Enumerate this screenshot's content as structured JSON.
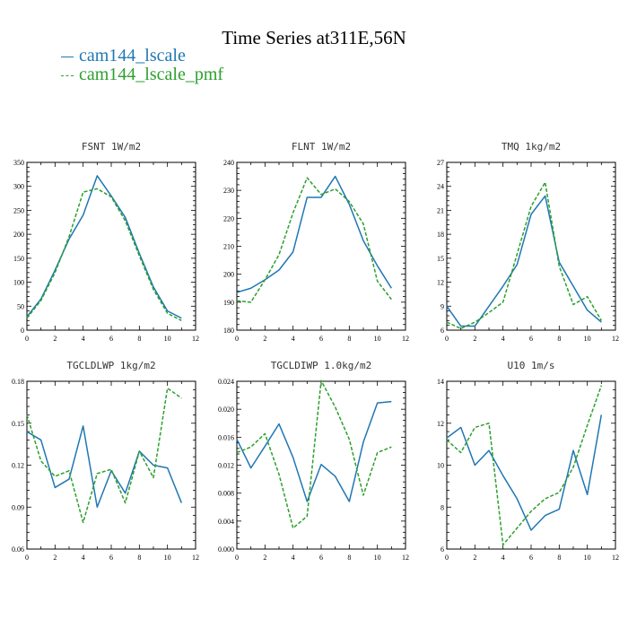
{
  "title": "Time Series at311E,56N",
  "legend": [
    {
      "name": "cam144_lscale",
      "color": "#1f77b4",
      "style": "solid"
    },
    {
      "name": "cam144_lscale_pmf",
      "color": "#2ca02c",
      "style": "dashed"
    }
  ],
  "chart_data": [
    {
      "type": "line",
      "title": "FSNT  1W/m2",
      "x": [
        0,
        1,
        2,
        3,
        4,
        5,
        6,
        7,
        8,
        9,
        10,
        11
      ],
      "xlim": [
        0,
        12
      ],
      "xticks": [
        0,
        2,
        4,
        6,
        8,
        10,
        12
      ],
      "ylim": [
        0,
        350
      ],
      "yticks": [
        0,
        50,
        100,
        150,
        200,
        250,
        300,
        350
      ],
      "ytick_labels": [
        "0",
        "50",
        "100",
        "150",
        "200",
        "250",
        "300",
        "350"
      ],
      "series": [
        {
          "name": "cam144_lscale",
          "values": [
            28,
            65,
            125,
            190,
            240,
            322,
            280,
            235,
            160,
            90,
            40,
            25
          ]
        },
        {
          "name": "cam144_lscale_pmf",
          "values": [
            25,
            62,
            120,
            195,
            288,
            295,
            278,
            228,
            155,
            85,
            35,
            20
          ]
        }
      ]
    },
    {
      "type": "line",
      "title": "FLNT  1W/m2",
      "x": [
        0,
        1,
        2,
        3,
        4,
        5,
        6,
        7,
        8,
        9,
        10,
        11
      ],
      "xlim": [
        0,
        12
      ],
      "xticks": [
        0,
        2,
        4,
        6,
        8,
        10,
        12
      ],
      "ylim": [
        180,
        240
      ],
      "yticks": [
        180,
        190,
        200,
        210,
        220,
        230,
        240
      ],
      "ytick_labels": [
        "180",
        "190",
        "200",
        "210",
        "220",
        "230",
        "240"
      ],
      "series": [
        {
          "name": "cam144_lscale",
          "values": [
            193.5,
            195,
            198,
            201.5,
            208,
            227.5,
            227.5,
            235,
            225,
            212,
            203,
            195
          ]
        },
        {
          "name": "cam144_lscale_pmf",
          "values": [
            190.5,
            190,
            198,
            207,
            222,
            234.5,
            228.5,
            230.5,
            226,
            218,
            197.5,
            191
          ]
        }
      ]
    },
    {
      "type": "line",
      "title": "TMQ  1kg/m2",
      "x": [
        0,
        1,
        2,
        3,
        4,
        5,
        6,
        7,
        8,
        9,
        10,
        11
      ],
      "xlim": [
        0,
        12
      ],
      "xticks": [
        0,
        2,
        4,
        6,
        8,
        10,
        12
      ],
      "ylim": [
        6,
        27
      ],
      "yticks": [
        6,
        9,
        12,
        15,
        18,
        21,
        24,
        27
      ],
      "ytick_labels": [
        "6",
        "9",
        "12",
        "15",
        "18",
        "21",
        "24",
        "27"
      ],
      "series": [
        {
          "name": "cam144_lscale",
          "values": [
            9,
            6.5,
            6.5,
            9,
            11.5,
            14.2,
            20.5,
            22.8,
            14.5,
            11.5,
            8.5,
            7
          ]
        },
        {
          "name": "cam144_lscale_pmf",
          "values": [
            7,
            6.2,
            7,
            8.2,
            9.5,
            15.5,
            21.5,
            24.5,
            14,
            9.2,
            10.2,
            7.2
          ]
        }
      ]
    },
    {
      "type": "line",
      "title": "TGCLDLWP  1kg/m2",
      "x": [
        0,
        1,
        2,
        3,
        4,
        5,
        6,
        7,
        8,
        9,
        10,
        11
      ],
      "xlim": [
        0,
        12
      ],
      "xticks": [
        0,
        2,
        4,
        6,
        8,
        10,
        12
      ],
      "ylim": [
        0.06,
        0.18
      ],
      "yticks": [
        0.06,
        0.09,
        0.12,
        0.15,
        0.18
      ],
      "ytick_labels": [
        "0.06",
        "0.09",
        "0.12",
        "0.15",
        "0.18"
      ],
      "series": [
        {
          "name": "cam144_lscale",
          "values": [
            0.144,
            0.138,
            0.104,
            0.11,
            0.148,
            0.09,
            0.116,
            0.1,
            0.13,
            0.12,
            0.118,
            0.093
          ]
        },
        {
          "name": "cam144_lscale_pmf",
          "values": [
            0.156,
            0.123,
            0.112,
            0.116,
            0.079,
            0.114,
            0.117,
            0.093,
            0.13,
            0.111,
            0.175,
            0.168
          ]
        }
      ]
    },
    {
      "type": "line",
      "title": "TGCLDIWP  1.0kg/m2",
      "x": [
        0,
        1,
        2,
        3,
        4,
        5,
        6,
        7,
        8,
        9,
        10,
        11
      ],
      "xlim": [
        0,
        12
      ],
      "xticks": [
        0,
        2,
        4,
        6,
        8,
        10,
        12
      ],
      "ylim": [
        0,
        0.024
      ],
      "yticks": [
        0,
        0.004,
        0.008,
        0.012,
        0.016,
        0.02,
        0.024
      ],
      "ytick_labels": [
        "0.000",
        "0.004",
        "0.008",
        "0.012",
        "0.016",
        "0.020",
        "0.024"
      ],
      "series": [
        {
          "name": "cam144_lscale",
          "values": [
            0.0157,
            0.0116,
            0.0147,
            0.0179,
            0.0131,
            0.0068,
            0.0121,
            0.0104,
            0.0068,
            0.0153,
            0.0209,
            0.0211
          ]
        },
        {
          "name": "cam144_lscale_pmf",
          "values": [
            0.0138,
            0.0146,
            0.0165,
            0.0107,
            0.003,
            0.0047,
            0.0241,
            0.0203,
            0.0157,
            0.0077,
            0.0138,
            0.0146
          ]
        }
      ]
    },
    {
      "type": "line",
      "title": "U10  1m/s",
      "x": [
        0,
        1,
        2,
        3,
        4,
        5,
        6,
        7,
        8,
        9,
        10,
        11
      ],
      "xlim": [
        0,
        12
      ],
      "xticks": [
        0,
        2,
        4,
        6,
        8,
        10,
        12
      ],
      "ylim": [
        6,
        14
      ],
      "yticks": [
        6,
        8,
        10,
        12,
        14
      ],
      "ytick_labels": [
        "6",
        "8",
        "10",
        "12",
        "14"
      ],
      "series": [
        {
          "name": "cam144_lscale",
          "values": [
            11.3,
            11.8,
            10,
            10.7,
            9.5,
            8.4,
            6.9,
            7.6,
            7.9,
            10.7,
            8.6,
            12.4
          ]
        },
        {
          "name": "cam144_lscale_pmf",
          "values": [
            11.2,
            10.6,
            11.8,
            12,
            6.2,
            7,
            7.8,
            8.4,
            8.7,
            9.9,
            11.9,
            13.8
          ]
        }
      ]
    }
  ]
}
